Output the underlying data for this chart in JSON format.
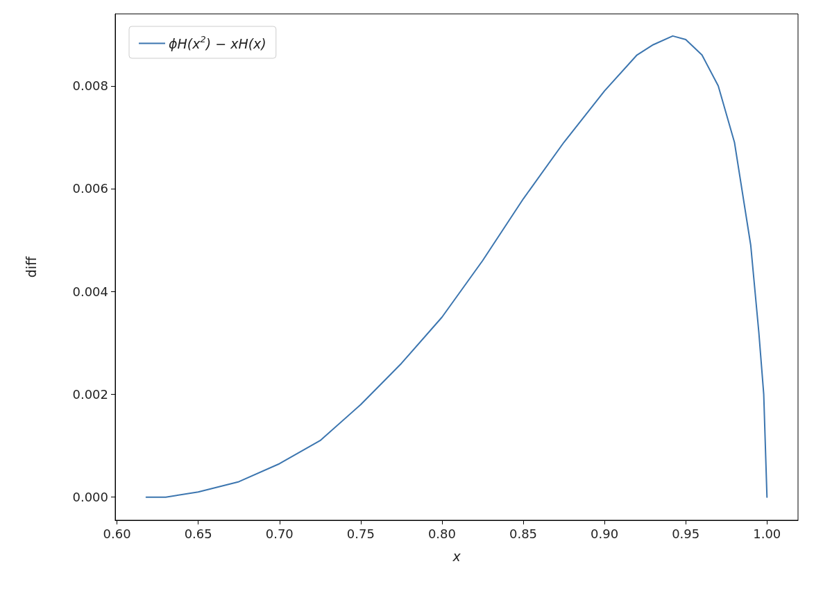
{
  "chart_data": {
    "type": "line",
    "xlabel": "x",
    "ylabel": "diff",
    "x": [
      0.618,
      0.63,
      0.65,
      0.675,
      0.7,
      0.725,
      0.75,
      0.775,
      0.8,
      0.825,
      0.85,
      0.875,
      0.9,
      0.92,
      0.93,
      0.942,
      0.95,
      0.96,
      0.97,
      0.98,
      0.99,
      0.995,
      0.998,
      1.0
    ],
    "series": [
      {
        "name": "ϕH(x$^{2}$) − xH(x)",
        "color": "#3b75af",
        "values": [
          0,
          0,
          0.0001,
          0.0003,
          0.00065,
          0.0011,
          0.0018,
          0.0026,
          0.0035,
          0.0046,
          0.0058,
          0.0069,
          0.0079,
          0.0086,
          0.0088,
          0.00897,
          0.0089,
          0.0086,
          0.008,
          0.0069,
          0.0049,
          0.0032,
          0.002,
          0
        ]
      }
    ],
    "xlim": [
      0.5989,
      1.0191
    ],
    "ylim": [
      -0.00045,
      0.0094
    ],
    "xticks": [
      {
        "value": 0.6,
        "label": "0.60"
      },
      {
        "value": 0.65,
        "label": "0.65"
      },
      {
        "value": 0.7,
        "label": "0.70"
      },
      {
        "value": 0.75,
        "label": "0.75"
      },
      {
        "value": 0.8,
        "label": "0.80"
      },
      {
        "value": 0.85,
        "label": "0.85"
      },
      {
        "value": 0.9,
        "label": "0.90"
      },
      {
        "value": 0.95,
        "label": "0.95"
      },
      {
        "value": 1.0,
        "label": "1.00"
      }
    ],
    "yticks": [
      {
        "value": 0,
        "label": "0.000"
      },
      {
        "value": 0.002,
        "label": "0.002"
      },
      {
        "value": 0.004,
        "label": "0.004"
      },
      {
        "value": 0.006,
        "label": "0.006"
      },
      {
        "value": 0.008,
        "label": "0.008"
      }
    ],
    "legend": "top left",
    "marker": "none",
    "line_style": "solid",
    "grid": false
  }
}
